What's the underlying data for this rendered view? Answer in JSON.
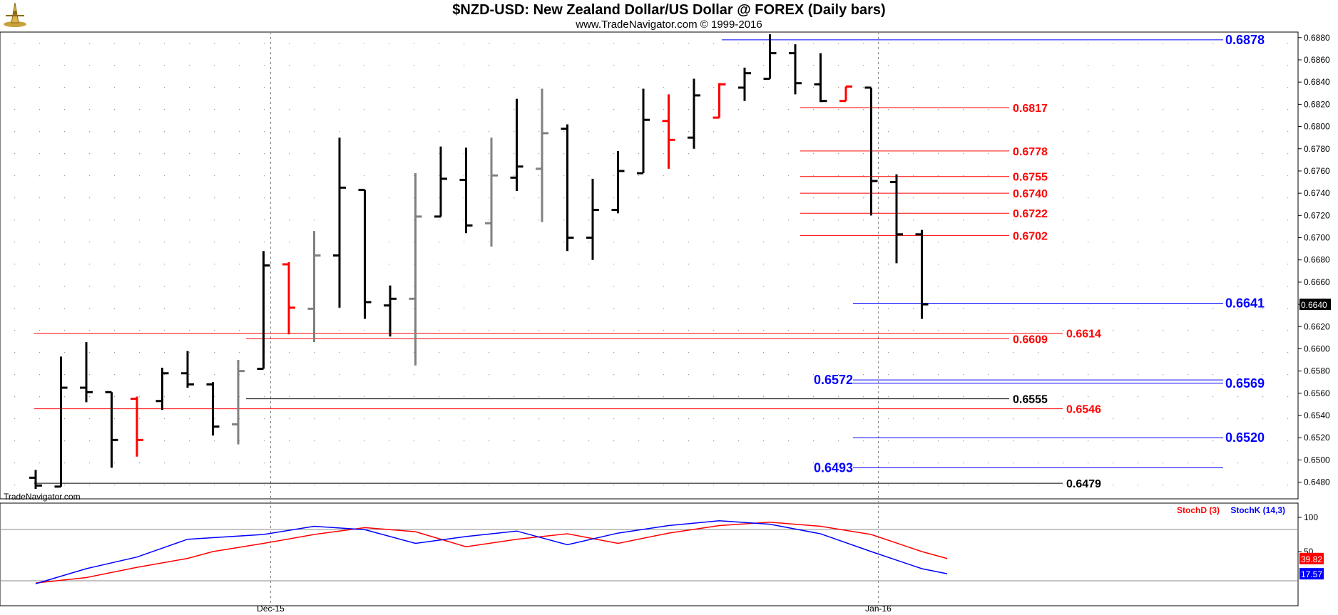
{
  "header": {
    "title": "$NZD-USD:  New Zealand Dollar/US Dollar @ FOREX  (Daily bars)",
    "subtitle": "www.TradeNavigator.com © 1999-2016",
    "watermark": "TradeNavigator.com",
    "logo_icon": "compass-logo-icon"
  },
  "colors": {
    "up_bar": "#000000",
    "down_bar": "#ff0000",
    "neutral_bar": "#808080",
    "support_resistance_red": "#ff0000",
    "support_resistance_blue": "#0000ff",
    "stoch_d": "#ff0000",
    "stoch_k": "#0000ff"
  },
  "chart_data": [
    {
      "type": "ohlc",
      "title": "$NZD-USD:  New Zealand Dollar/US Dollar @ FOREX  (Daily bars)",
      "ylim": [
        0.6465,
        0.6885
      ],
      "y_ticks": [
        "0.6480",
        "0.6500",
        "0.6520",
        "0.6540",
        "0.6560",
        "0.6580",
        "0.6600",
        "0.6620",
        "0.6640",
        "0.6660",
        "0.6680",
        "0.6700",
        "0.6720",
        "0.6740",
        "0.6760",
        "0.6780",
        "0.6800",
        "0.6820",
        "0.6840",
        "0.6860",
        "0.6880"
      ],
      "x_labels": [
        {
          "index": 9,
          "label": "Dec-15"
        },
        {
          "index": 33,
          "label": "Jan-16"
        }
      ],
      "last_price": "0.6640",
      "bars": [
        {
          "o": 0.6484,
          "h": 0.6491,
          "l": 0.6474,
          "c": 0.6477,
          "color": "black"
        },
        {
          "o": 0.6476,
          "h": 0.6593,
          "l": 0.6476,
          "c": 0.6565,
          "color": "black"
        },
        {
          "o": 0.6565,
          "h": 0.6606,
          "l": 0.6552,
          "c": 0.6561,
          "color": "black"
        },
        {
          "o": 0.6561,
          "h": 0.6561,
          "l": 0.6493,
          "c": 0.6518,
          "color": "black"
        },
        {
          "o": 0.6555,
          "h": 0.6557,
          "l": 0.6503,
          "c": 0.6518,
          "color": "red"
        },
        {
          "o": 0.6553,
          "h": 0.6583,
          "l": 0.6545,
          "c": 0.6578,
          "color": "black"
        },
        {
          "o": 0.6578,
          "h": 0.6598,
          "l": 0.6565,
          "c": 0.6568,
          "color": "black"
        },
        {
          "o": 0.6568,
          "h": 0.657,
          "l": 0.6522,
          "c": 0.653,
          "color": "black"
        },
        {
          "o": 0.6532,
          "h": 0.659,
          "l": 0.6514,
          "c": 0.658,
          "color": "gray"
        },
        {
          "o": 0.6582,
          "h": 0.6688,
          "l": 0.6582,
          "c": 0.6675,
          "color": "black"
        },
        {
          "o": 0.6676,
          "h": 0.6678,
          "l": 0.6613,
          "c": 0.6637,
          "color": "red"
        },
        {
          "o": 0.6636,
          "h": 0.6706,
          "l": 0.6606,
          "c": 0.6684,
          "color": "gray"
        },
        {
          "o": 0.6684,
          "h": 0.679,
          "l": 0.6637,
          "c": 0.6745,
          "color": "black"
        },
        {
          "o": 0.6743,
          "h": 0.6743,
          "l": 0.6627,
          "c": 0.6642,
          "color": "black"
        },
        {
          "o": 0.6639,
          "h": 0.6657,
          "l": 0.6611,
          "c": 0.6645,
          "color": "black"
        },
        {
          "o": 0.6645,
          "h": 0.6758,
          "l": 0.6585,
          "c": 0.6719,
          "color": "gray"
        },
        {
          "o": 0.6719,
          "h": 0.6782,
          "l": 0.6719,
          "c": 0.6753,
          "color": "black"
        },
        {
          "o": 0.6752,
          "h": 0.6781,
          "l": 0.6704,
          "c": 0.6711,
          "color": "black"
        },
        {
          "o": 0.6713,
          "h": 0.679,
          "l": 0.6692,
          "c": 0.6756,
          "color": "gray"
        },
        {
          "o": 0.6754,
          "h": 0.6825,
          "l": 0.6742,
          "c": 0.6764,
          "color": "black"
        },
        {
          "o": 0.6762,
          "h": 0.6834,
          "l": 0.6714,
          "c": 0.6794,
          "color": "gray"
        },
        {
          "o": 0.6798,
          "h": 0.6802,
          "l": 0.6688,
          "c": 0.67,
          "color": "black"
        },
        {
          "o": 0.67,
          "h": 0.6753,
          "l": 0.668,
          "c": 0.6725,
          "color": "black"
        },
        {
          "o": 0.6725,
          "h": 0.6778,
          "l": 0.6722,
          "c": 0.676,
          "color": "black"
        },
        {
          "o": 0.6758,
          "h": 0.6834,
          "l": 0.6758,
          "c": 0.6806,
          "color": "black"
        },
        {
          "o": 0.6805,
          "h": 0.6829,
          "l": 0.6762,
          "c": 0.6788,
          "color": "red"
        },
        {
          "o": 0.679,
          "h": 0.6843,
          "l": 0.678,
          "c": 0.6828,
          "color": "black"
        },
        {
          "o": 0.6808,
          "h": 0.6839,
          "l": 0.6808,
          "c": 0.6838,
          "color": "red"
        },
        {
          "o": 0.6835,
          "h": 0.6853,
          "l": 0.6823,
          "c": 0.6848,
          "color": "black"
        },
        {
          "o": 0.6843,
          "h": 0.6883,
          "l": 0.6843,
          "c": 0.6866,
          "color": "black"
        },
        {
          "o": 0.6866,
          "h": 0.6874,
          "l": 0.6829,
          "c": 0.6839,
          "color": "black"
        },
        {
          "o": 0.6838,
          "h": 0.6866,
          "l": 0.6822,
          "c": 0.6823,
          "color": "black"
        },
        {
          "o": 0.6823,
          "h": 0.6836,
          "l": 0.6823,
          "c": 0.6836,
          "color": "red"
        },
        {
          "o": 0.6835,
          "h": 0.6835,
          "l": 0.672,
          "c": 0.6751,
          "color": "black"
        },
        {
          "o": 0.675,
          "h": 0.6757,
          "l": 0.6677,
          "c": 0.6703,
          "color": "black"
        },
        {
          "o": 0.6703,
          "h": 0.6707,
          "l": 0.6627,
          "c": 0.664,
          "color": "black"
        }
      ],
      "levels": [
        {
          "value": "0.6878",
          "color": "blue",
          "from": 27,
          "label_side": "right"
        },
        {
          "value": "0.6817",
          "color": "red",
          "from": 30,
          "label_side": "mid"
        },
        {
          "value": "0.6778",
          "color": "red",
          "from": 30,
          "label_side": "mid"
        },
        {
          "value": "0.6755",
          "color": "red",
          "from": 30,
          "label_side": "mid"
        },
        {
          "value": "0.6740",
          "color": "red",
          "from": 30,
          "label_side": "mid"
        },
        {
          "value": "0.6722",
          "color": "red",
          "from": 30,
          "label_side": "mid"
        },
        {
          "value": "0.6702",
          "color": "red",
          "from": 30,
          "label_side": "mid"
        },
        {
          "value": "0.6641",
          "color": "blue",
          "from": 32,
          "label_side": "right"
        },
        {
          "value": "0.6614",
          "color": "red",
          "from": 0,
          "label_side": "far"
        },
        {
          "value": "0.6609",
          "color": "red",
          "from": 8,
          "label_side": "mid"
        },
        {
          "value": "0.6572",
          "color": "blue",
          "from": 32,
          "label_side": "left"
        },
        {
          "value": "0.6569",
          "color": "blue",
          "from": 32,
          "label_side": "right"
        },
        {
          "value": "0.6555",
          "color": "black",
          "from": 8,
          "label_side": "mid"
        },
        {
          "value": "0.6546",
          "color": "red",
          "from": 0,
          "label_side": "far"
        },
        {
          "value": "0.6520",
          "color": "blue",
          "from": 32,
          "label_side": "right"
        },
        {
          "value": "0.6493",
          "color": "blue",
          "from": 32,
          "label_side": "left"
        },
        {
          "value": "0.6479",
          "color": "black",
          "from": 0,
          "label_side": "far"
        }
      ]
    },
    {
      "type": "line",
      "title": "Stochastic",
      "ylim": [
        0,
        100
      ],
      "y_ticks": [
        "100",
        "50"
      ],
      "legend": [
        "StochD (3)",
        "StochK (14,3)"
      ],
      "last_values": {
        "stoch_d": "39.82",
        "stoch_k": "17.57"
      },
      "series": [
        {
          "name": "StochD (3)",
          "color": "red",
          "values": [
            [
              0,
              4
            ],
            [
              2,
              12
            ],
            [
              4,
              27
            ],
            [
              6,
              40
            ],
            [
              7,
              50
            ],
            [
              9,
              62
            ],
            [
              11,
              75
            ],
            [
              13,
              85
            ],
            [
              15,
              79
            ],
            [
              17,
              57
            ],
            [
              19,
              68
            ],
            [
              21,
              76
            ],
            [
              23,
              62
            ],
            [
              25,
              77
            ],
            [
              27,
              88
            ],
            [
              29,
              93
            ],
            [
              31,
              87
            ],
            [
              33,
              75
            ],
            [
              35,
              50
            ],
            [
              36,
              39.82
            ]
          ]
        },
        {
          "name": "StochK (14,3)",
          "color": "blue",
          "values": [
            [
              0,
              3
            ],
            [
              2,
              25
            ],
            [
              4,
              42
            ],
            [
              6,
              68
            ],
            [
              9,
              75
            ],
            [
              11,
              87
            ],
            [
              13,
              82
            ],
            [
              15,
              62
            ],
            [
              17,
              72
            ],
            [
              19,
              80
            ],
            [
              21,
              60
            ],
            [
              23,
              77
            ],
            [
              25,
              88
            ],
            [
              27,
              95
            ],
            [
              29,
              90
            ],
            [
              31,
              76
            ],
            [
              33,
              50
            ],
            [
              35,
              25
            ],
            [
              36,
              17.57
            ]
          ]
        }
      ]
    }
  ]
}
